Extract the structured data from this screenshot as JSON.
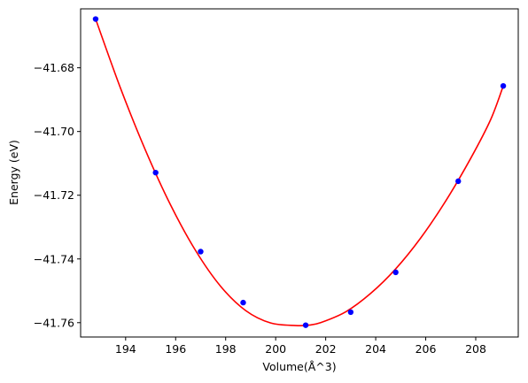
{
  "chart_data": {
    "type": "scatter",
    "title": "",
    "xlabel": "Volume(Å^3)",
    "ylabel": "Energy (eV)",
    "xlim": [
      192.2,
      209.7
    ],
    "ylim": [
      -41.7645,
      -41.6615
    ],
    "xticks": [
      194,
      196,
      198,
      200,
      202,
      204,
      206,
      208
    ],
    "xtick_labels": [
      "194",
      "196",
      "198",
      "200",
      "202",
      "204",
      "206",
      "208"
    ],
    "yticks": [
      -41.68,
      -41.7,
      -41.72,
      -41.74,
      -41.76
    ],
    "ytick_labels": [
      "−41.68",
      "−41.70",
      "−41.72",
      "−41.74",
      "−41.76"
    ],
    "grid": false,
    "series": [
      {
        "kind": "points",
        "color": "#0000ff",
        "x": [
          192.8,
          195.2,
          197.0,
          198.7,
          201.2,
          203.0,
          204.8,
          207.3,
          209.1
        ],
        "y": [
          -41.6647,
          -41.7129,
          -41.7377,
          -41.7537,
          -41.7608,
          -41.7567,
          -41.7442,
          -41.7156,
          -41.6857
        ]
      },
      {
        "kind": "fit_curve",
        "color": "#ff0000",
        "x": [
          192.8,
          193.8,
          194.8,
          195.8,
          196.8,
          197.8,
          198.8,
          199.8,
          200.8,
          201.3,
          201.8,
          202.8,
          203.8,
          204.8,
          205.8,
          206.8,
          207.8,
          208.6,
          209.1
        ],
        "y": [
          -41.6647,
          -41.6865,
          -41.706,
          -41.7231,
          -41.7374,
          -41.7486,
          -41.7562,
          -41.7601,
          -41.7609,
          -41.7608,
          -41.76,
          -41.7566,
          -41.7508,
          -41.7431,
          -41.7334,
          -41.7218,
          -41.7084,
          -41.6962,
          -41.6857
        ]
      }
    ]
  }
}
